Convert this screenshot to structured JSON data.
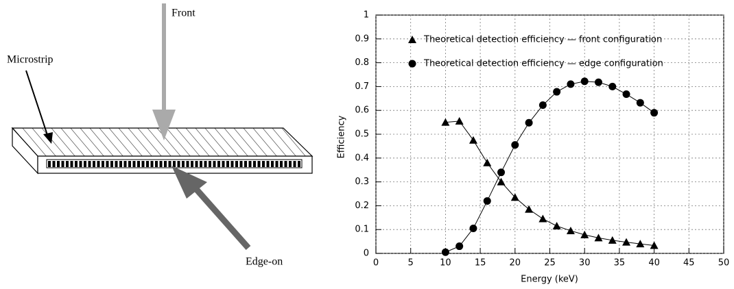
{
  "diagram": {
    "labels": {
      "front": "Front",
      "microstrip": "Microstrip",
      "edge": "Edge-on"
    }
  },
  "chart_data": {
    "type": "line",
    "x_label": "Energy (keV)",
    "y_label": "Efficiency",
    "x": [
      10,
      12,
      14,
      16,
      18,
      20,
      22,
      24,
      26,
      28,
      30,
      32,
      34,
      36,
      38,
      40
    ],
    "series": [
      {
        "name": "Theoretical detection efficiency — front configuration",
        "color": "#000000",
        "marker": "triangle",
        "values": [
          0.55,
          0.555,
          0.475,
          0.38,
          0.3,
          0.235,
          0.185,
          0.145,
          0.115,
          0.095,
          0.078,
          0.065,
          0.055,
          0.047,
          0.04,
          0.033
        ]
      },
      {
        "name": "Theoretical detection efficiency — edge configuration",
        "color": "#000000",
        "marker": "circle",
        "values": [
          0.005,
          0.03,
          0.105,
          0.22,
          0.34,
          0.455,
          0.548,
          0.622,
          0.678,
          0.71,
          0.722,
          0.718,
          0.7,
          0.668,
          0.632,
          0.59
        ]
      }
    ],
    "xlim": [
      0,
      50
    ],
    "xticks": [
      0,
      5,
      10,
      15,
      20,
      25,
      30,
      35,
      40,
      45,
      50
    ],
    "ylim": [
      0,
      1
    ],
    "yticks": [
      0,
      0.1,
      0.2,
      0.3,
      0.4,
      0.5,
      0.6,
      0.7,
      0.8,
      0.9,
      1
    ],
    "grid": true,
    "legend": "upper-left"
  }
}
